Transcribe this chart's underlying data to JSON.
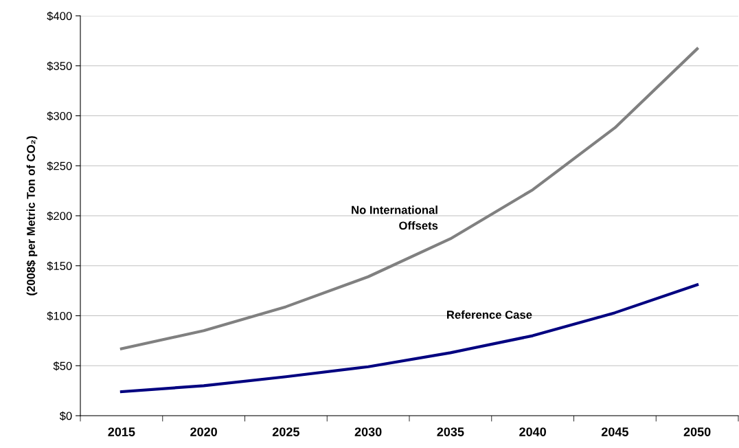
{
  "chart_data": {
    "type": "line",
    "ylabel": "(2008$ per Metric Ton of CO₂)",
    "categories": [
      "2015",
      "2020",
      "2025",
      "2030",
      "2035",
      "2040",
      "2045",
      "2050"
    ],
    "series": [
      {
        "name": "No International\nOffsets",
        "color": "#808080",
        "values": [
          67,
          85,
          109,
          139,
          177,
          226,
          288,
          367
        ]
      },
      {
        "name": "Reference Case",
        "color": "#000080",
        "values": [
          24,
          30,
          39,
          49,
          63,
          80,
          103,
          131
        ]
      }
    ],
    "ylim": [
      0,
      400
    ],
    "yticks": [
      {
        "value": 0,
        "label": "$0"
      },
      {
        "value": 50,
        "label": "$50"
      },
      {
        "value": 100,
        "label": "$100"
      },
      {
        "value": 150,
        "label": "$150"
      },
      {
        "value": 200,
        "label": "$200"
      },
      {
        "value": 250,
        "label": "$250"
      },
      {
        "value": 300,
        "label": "$300"
      },
      {
        "value": 350,
        "label": "$350"
      },
      {
        "value": 400,
        "label": "$400"
      }
    ],
    "grid": "y",
    "marker": "none",
    "line_style": "solid"
  }
}
